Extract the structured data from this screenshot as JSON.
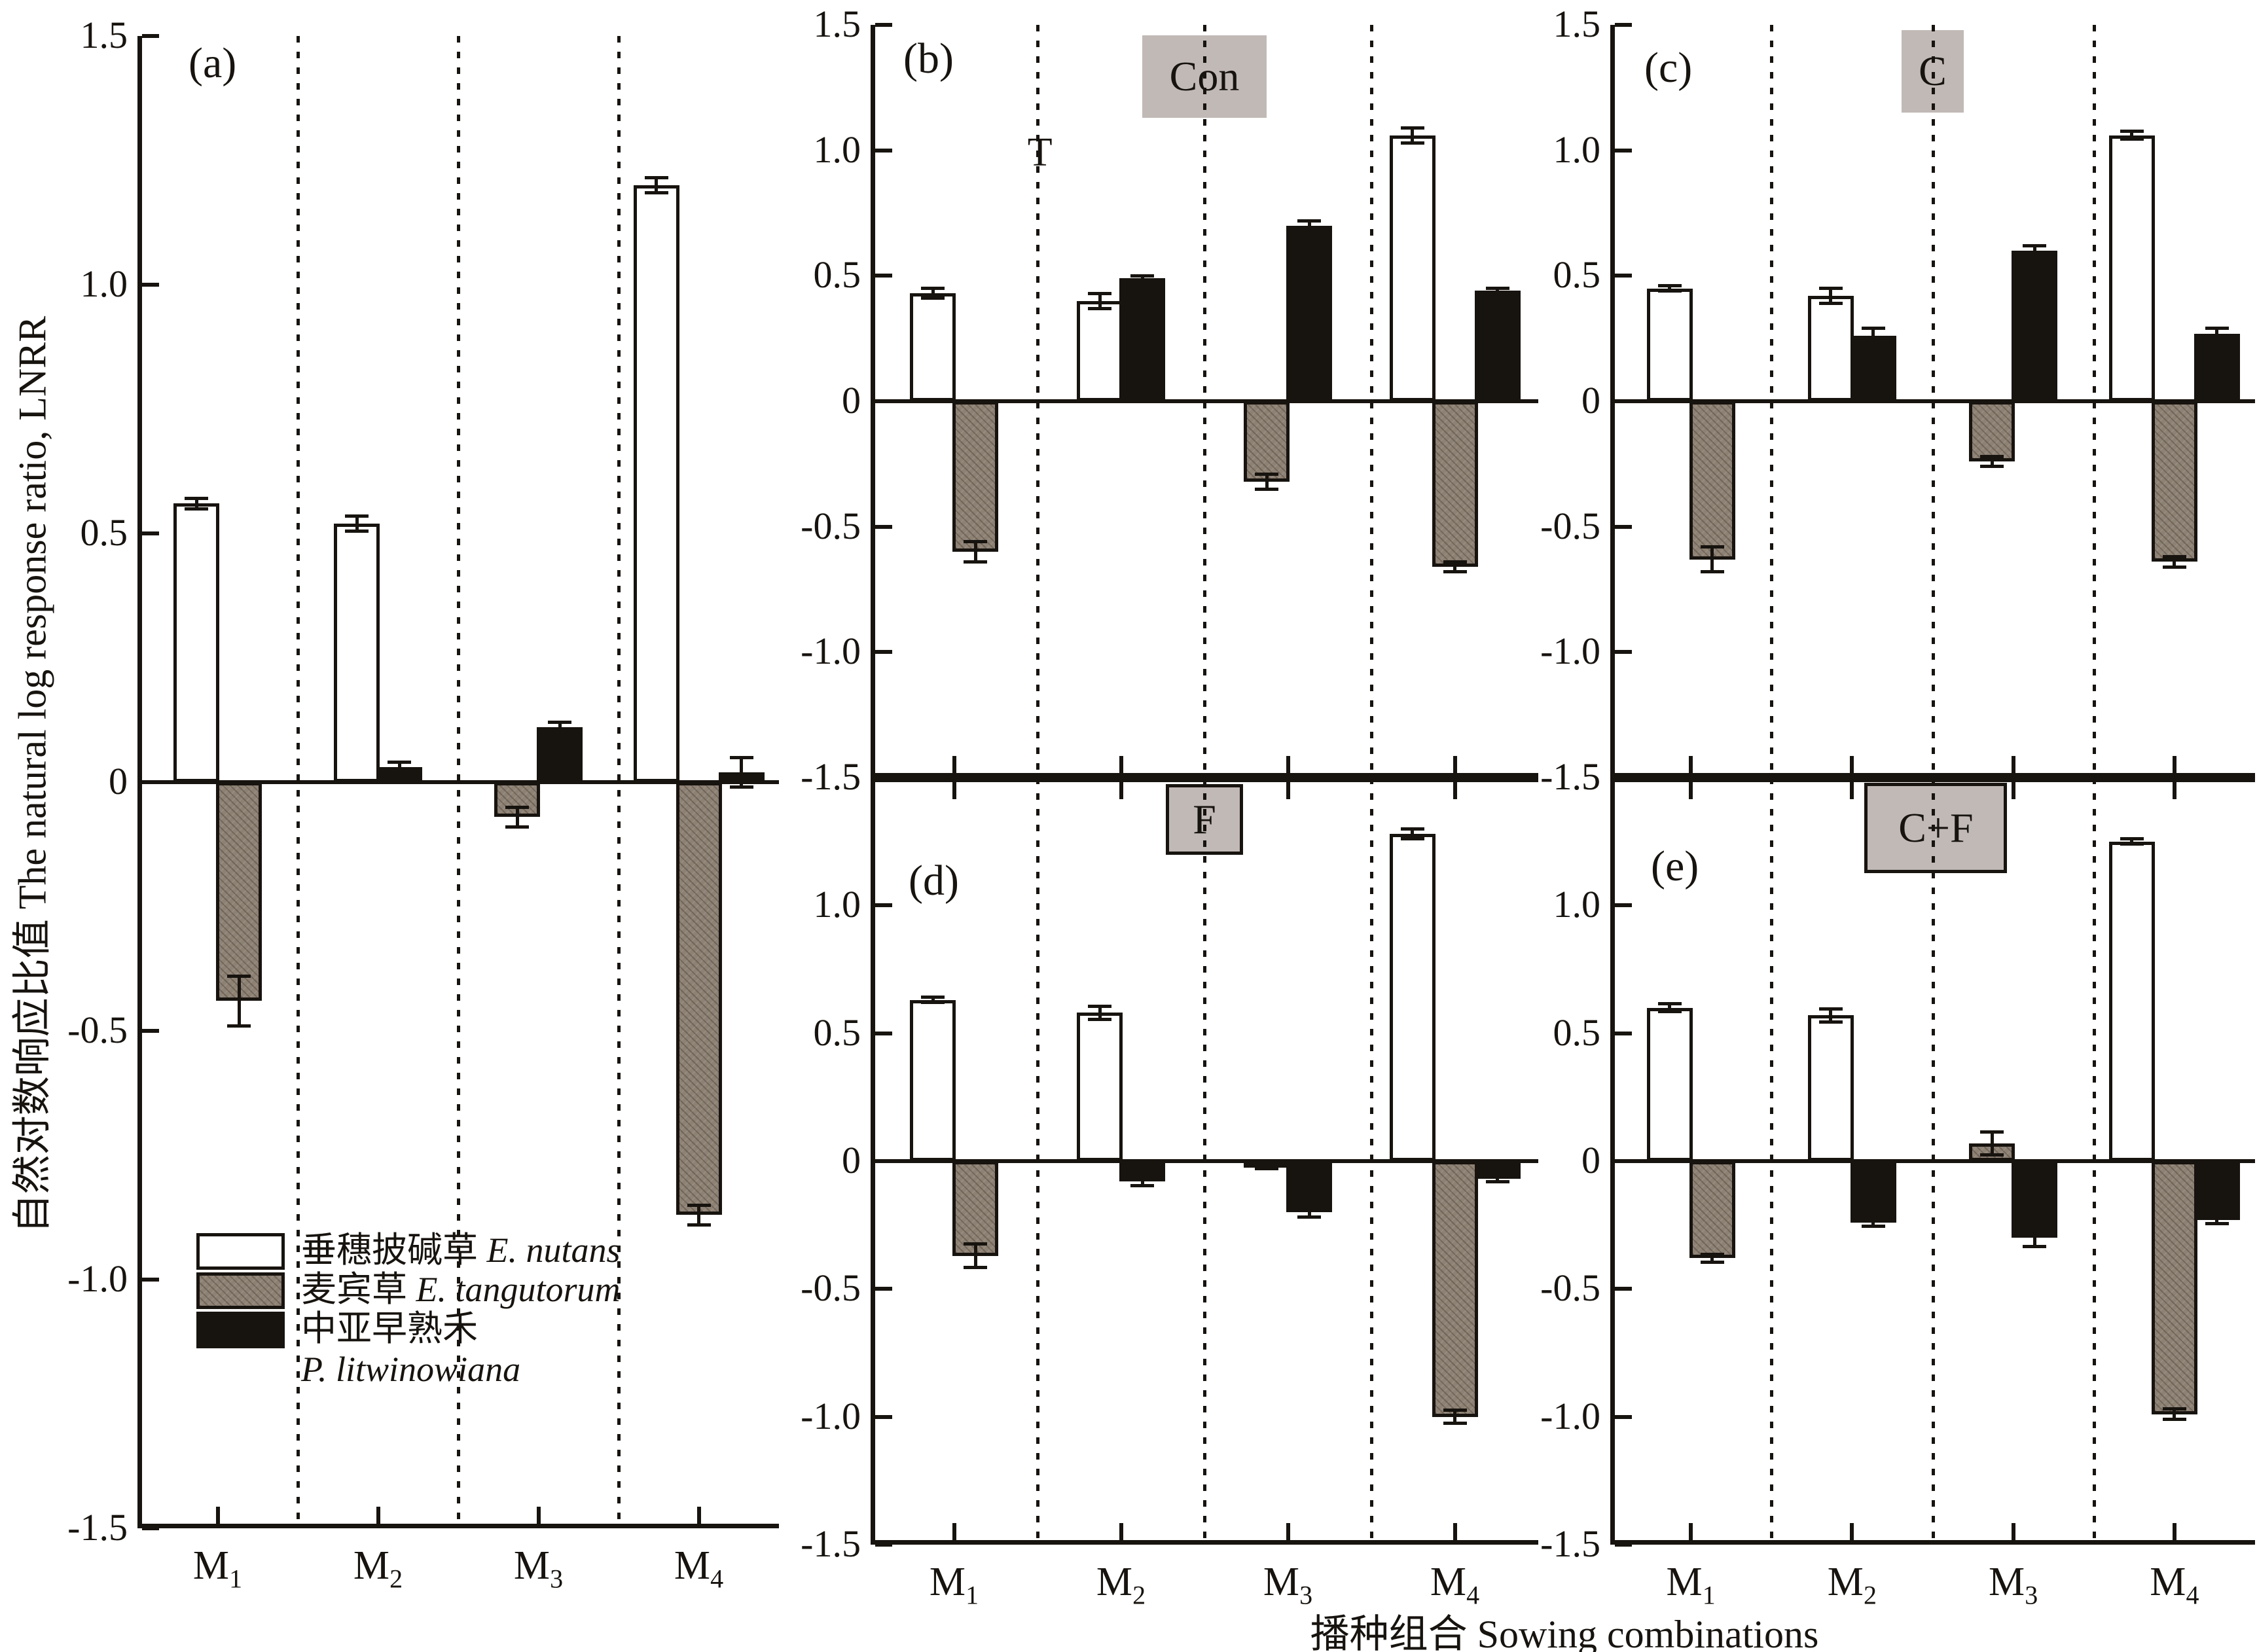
{
  "figure": {
    "y_axis_title": "自然对数响应比值 The natural log response ratio, LNRR",
    "x_axis_title": "播种组合 Sowing combinations"
  },
  "legend": {
    "position": "inside panel a, lower left",
    "items": [
      {
        "swatch": "white",
        "cjk": "垂穗披碱草",
        "latin": "E. nutans",
        "latin_new_line": false
      },
      {
        "swatch": "gray",
        "cjk": "麦宾草",
        "latin": "E. tangutorum",
        "latin_new_line": false
      },
      {
        "swatch": "black",
        "cjk": "中亚早熟禾",
        "latin": "P. litwinowiana",
        "latin_new_line": true
      }
    ]
  },
  "colors": {
    "bar_white": "#ffffff",
    "bar_gray": "#8d8174",
    "bar_black": "#17130f",
    "line": "#17130f",
    "treatment_box_bg": "#c1b9b5"
  },
  "chart_data": {
    "type": "bar",
    "ylabel": "自然对数响应比值 The natural log response ratio, LNRR",
    "xlabel": "播种组合 Sowing combinations",
    "ylim": [
      -1.5,
      1.5
    ],
    "yticks": [
      "1.5",
      "1.0",
      "0.5",
      "0",
      "-0.5",
      "-1.0",
      "-1.5"
    ],
    "ytick_values": [
      1.5,
      1.0,
      0.5,
      0,
      -0.5,
      -1.0,
      -1.5
    ],
    "grid": "three vertical dotted separator lines per panel between sowing combinations",
    "error_bars": true,
    "categories": [
      {
        "base": "M",
        "sub": "1"
      },
      {
        "base": "M",
        "sub": "2"
      },
      {
        "base": "M",
        "sub": "3"
      },
      {
        "base": "M",
        "sub": "4"
      }
    ],
    "series_legend": [
      {
        "name": "nutans",
        "label": "垂穗披碱草 E. nutans",
        "fill": "white"
      },
      {
        "name": "tangutorum",
        "label": "麦宾草 E. tangutorum",
        "fill": "gray hatched"
      },
      {
        "name": "litwinowiana",
        "label": "中亚早熟禾 P. litwinowiana",
        "fill": "black"
      }
    ],
    "panels": [
      {
        "key": "a",
        "corner_label": "(a)",
        "treatment_label": null,
        "annotation": null,
        "series": [
          {
            "name": "nutans",
            "values": [
              0.56,
              0.52,
              null,
              1.2
            ],
            "errors": [
              0.01,
              0.015,
              null,
              0.015
            ]
          },
          {
            "name": "tangutorum",
            "values": [
              -0.44,
              null,
              -0.07,
              -0.87
            ],
            "errors": [
              0.05,
              null,
              0.02,
              0.02
            ]
          },
          {
            "name": "litwinowiana",
            "values": [
              null,
              0.03,
              0.11,
              0.02
            ],
            "errors": [
              null,
              0.01,
              0.01,
              0.03
            ]
          }
        ]
      },
      {
        "key": "b",
        "corner_label": "(b)",
        "treatment_label": "Con",
        "treatment_box_border": false,
        "annotation": "T",
        "series": [
          {
            "name": "nutans",
            "values": [
              0.43,
              0.4,
              null,
              1.06
            ],
            "errors": [
              0.02,
              0.03,
              null,
              0.03
            ]
          },
          {
            "name": "tangutorum",
            "values": [
              -0.6,
              null,
              -0.32,
              -0.66
            ],
            "errors": [
              0.04,
              null,
              0.03,
              0.02
            ]
          },
          {
            "name": "litwinowiana",
            "values": [
              null,
              0.49,
              0.7,
              0.44
            ],
            "errors": [
              null,
              0.01,
              0.02,
              0.01
            ]
          }
        ]
      },
      {
        "key": "c",
        "corner_label": "(c)",
        "treatment_label": "C",
        "treatment_box_border": false,
        "annotation": null,
        "series": [
          {
            "name": "nutans",
            "values": [
              0.45,
              0.42,
              null,
              1.06
            ],
            "errors": [
              0.01,
              0.03,
              null,
              0.015
            ]
          },
          {
            "name": "tangutorum",
            "values": [
              -0.63,
              null,
              -0.24,
              -0.64
            ],
            "errors": [
              0.05,
              null,
              0.02,
              0.02
            ]
          },
          {
            "name": "litwinowiana",
            "values": [
              null,
              0.26,
              0.6,
              0.27
            ],
            "errors": [
              null,
              0.03,
              0.02,
              0.02
            ]
          }
        ]
      },
      {
        "key": "d",
        "corner_label": "(d)",
        "treatment_label": "F",
        "treatment_box_border": true,
        "annotation": null,
        "series": [
          {
            "name": "nutans",
            "values": [
              0.63,
              0.58,
              null,
              1.28
            ],
            "errors": [
              0.01,
              0.025,
              null,
              0.02
            ]
          },
          {
            "name": "tangutorum",
            "values": [
              -0.37,
              null,
              -0.02,
              -1.0
            ],
            "errors": [
              0.045,
              null,
              0.01,
              0.025
            ]
          },
          {
            "name": "litwinowiana",
            "values": [
              null,
              -0.08,
              -0.2,
              -0.07
            ],
            "errors": [
              null,
              0.015,
              0.02,
              0.01
            ]
          }
        ]
      },
      {
        "key": "e",
        "corner_label": "(e)",
        "treatment_label": "C+F",
        "treatment_box_border": true,
        "annotation": null,
        "series": [
          {
            "name": "nutans",
            "values": [
              0.6,
              0.57,
              null,
              1.25
            ],
            "errors": [
              0.015,
              0.025,
              null,
              0.01
            ]
          },
          {
            "name": "tangutorum",
            "values": [
              -0.38,
              null,
              0.07,
              -0.99
            ],
            "errors": [
              0.015,
              null,
              0.045,
              0.02
            ]
          },
          {
            "name": "litwinowiana",
            "values": [
              null,
              -0.24,
              -0.3,
              -0.23
            ],
            "errors": [
              null,
              0.015,
              0.035,
              0.015
            ]
          }
        ]
      }
    ]
  }
}
